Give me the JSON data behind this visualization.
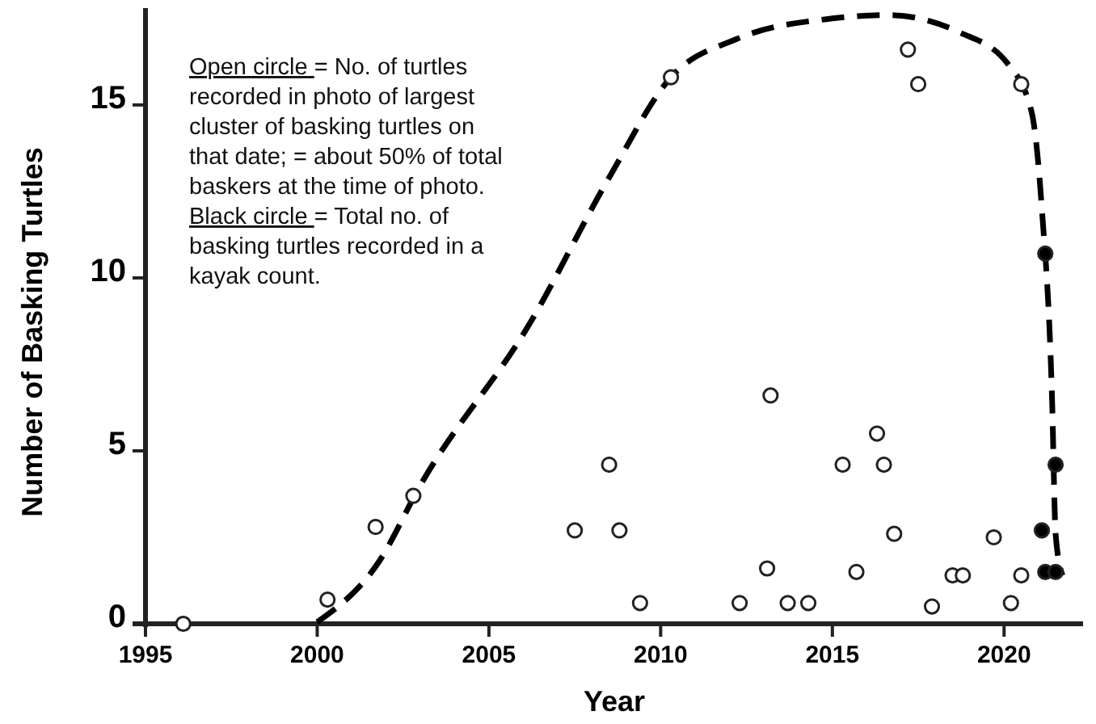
{
  "chart_data": {
    "type": "scatter",
    "xlabel": "Year",
    "ylabel": "Number of Basking Turtles",
    "xlim": [
      1995,
      2022.3
    ],
    "ylim": [
      0,
      17.8
    ],
    "xticks": [
      1995,
      2000,
      2005,
      2010,
      2015,
      2020
    ],
    "yticks": [
      0,
      5,
      10,
      15
    ],
    "grid": false,
    "marker": "circle",
    "annotations": [
      "Open circle = No. of turtles recorded in photo of largest cluster of basking turtles on that date; = about 50% of total baskers at the time of photo.",
      "Black circle = Total no. of basking turtles recorded in a kayak count."
    ],
    "series": [
      {
        "type": "line",
        "color": "#000000",
        "line_style": "dashed",
        "marker": "none",
        "x": [
          2000,
          2001.8,
          2003,
          2006.2,
          2008.5,
          2010.3,
          2012.2,
          2015,
          2016.6,
          2018.7,
          2020.1,
          2020.8,
          2021.1,
          2021.4,
          2021.5,
          2021.7
        ],
        "values": [
          0.05,
          1.8,
          4.0,
          8.7,
          12.9,
          15.8,
          16.9,
          17.5,
          17.6,
          17.1,
          16.2,
          14.8,
          12,
          6.4,
          2.6,
          1.4
        ]
      },
      {
        "color": "#ffffff",
        "x": [
          1996.1,
          2000.3,
          2001.7,
          2002.8,
          2007.5,
          2008.5,
          2008.8,
          2009.4,
          2012.3,
          2013.1,
          2013.2,
          2013.7,
          2014.3,
          2015.3,
          2015.7,
          2016.3,
          2016.5,
          2016.8,
          2017.9,
          2018.5,
          2018.8,
          2019.7,
          2020.2,
          2020.5,
          2010.3,
          2017.2,
          2017.5,
          2020.5
        ],
        "values": [
          0,
          0.7,
          2.8,
          3.7,
          2.7,
          4.6,
          2.7,
          0.6,
          0.6,
          1.6,
          6.6,
          0.6,
          0.6,
          4.6,
          1.5,
          5.5,
          4.6,
          2.6,
          0.5,
          1.4,
          1.4,
          2.5,
          0.6,
          1.4,
          15.8,
          16.6,
          15.6,
          15.6
        ]
      },
      {
        "color": "#000000",
        "x": [
          2021.2,
          2021.5,
          2021.1,
          2021.2,
          2021.5
        ],
        "values": [
          10.7,
          4.6,
          2.7,
          1.5,
          1.5
        ]
      }
    ]
  }
}
